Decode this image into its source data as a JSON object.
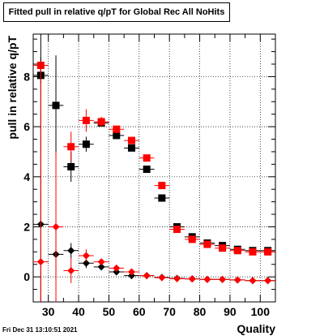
{
  "chart_data": {
    "type": "scatter",
    "title": "Fitted pull in relative q/pT for Global Rec All NoHits",
    "xlabel": "Quality",
    "ylabel": "pull in relative q/pT",
    "xlim": [
      25,
      105
    ],
    "ylim": [
      -1,
      9.7
    ],
    "x_ticks": [
      30,
      35,
      40,
      45,
      50,
      55,
      60,
      65,
      70,
      75,
      80,
      85,
      90,
      95,
      100
    ],
    "x_tick_labels": [
      "30",
      "40",
      "50",
      "60",
      "70",
      "80",
      "90",
      "100"
    ],
    "y_ticks": [
      0,
      2,
      4,
      6,
      8
    ],
    "y_tick_labels": [
      "0",
      "2",
      "4",
      "6",
      "8"
    ],
    "grid": true,
    "series": [
      {
        "color": "#000000",
        "marker": "square",
        "points": [
          {
            "x": 27.5,
            "y": 8.05,
            "err": 0.3
          },
          {
            "x": 32.5,
            "y": 6.85,
            "err": 2.0
          },
          {
            "x": 37.5,
            "y": 4.4,
            "err": 0.6
          },
          {
            "x": 42.5,
            "y": 5.3,
            "err": 0.3
          },
          {
            "x": 47.5,
            "y": 6.15,
            "err": 0.15
          },
          {
            "x": 52.5,
            "y": 5.65,
            "err": 0.1
          },
          {
            "x": 57.5,
            "y": 5.15,
            "err": 0.1
          },
          {
            "x": 62.5,
            "y": 4.3,
            "err": 0.08
          },
          {
            "x": 67.5,
            "y": 3.15,
            "err": 0.06
          },
          {
            "x": 72.5,
            "y": 2.0,
            "err": 0.05
          },
          {
            "x": 77.5,
            "y": 1.6,
            "err": 0.05
          },
          {
            "x": 82.5,
            "y": 1.35,
            "err": 0.04
          },
          {
            "x": 87.5,
            "y": 1.25,
            "err": 0.04
          },
          {
            "x": 92.5,
            "y": 1.1,
            "err": 0.04
          },
          {
            "x": 97.5,
            "y": 1.05,
            "err": 0.04
          },
          {
            "x": 102.5,
            "y": 1.05,
            "err": 0.04
          }
        ]
      },
      {
        "color": "#ff0000",
        "marker": "square",
        "points": [
          {
            "x": 27.5,
            "y": 8.45,
            "err": 0.3
          },
          {
            "x": 37.5,
            "y": 5.2,
            "err": 0.6
          },
          {
            "x": 42.5,
            "y": 6.25,
            "err": 0.45
          },
          {
            "x": 47.5,
            "y": 6.2,
            "err": 0.2
          },
          {
            "x": 52.5,
            "y": 5.9,
            "err": 0.1
          },
          {
            "x": 57.5,
            "y": 5.45,
            "err": 0.1
          },
          {
            "x": 62.5,
            "y": 4.75,
            "err": 0.08
          },
          {
            "x": 67.5,
            "y": 3.65,
            "err": 0.06
          },
          {
            "x": 72.5,
            "y": 1.9,
            "err": 0.05
          },
          {
            "x": 77.5,
            "y": 1.5,
            "err": 0.05
          },
          {
            "x": 82.5,
            "y": 1.3,
            "err": 0.04
          },
          {
            "x": 87.5,
            "y": 1.15,
            "err": 0.04
          },
          {
            "x": 92.5,
            "y": 1.05,
            "err": 0.04
          },
          {
            "x": 97.5,
            "y": 1.0,
            "err": 0.04
          },
          {
            "x": 102.5,
            "y": 1.0,
            "err": 0.04
          }
        ]
      },
      {
        "color": "#000000",
        "marker": "diamond",
        "points": [
          {
            "x": 27.5,
            "y": 2.1,
            "err": 8.0
          },
          {
            "x": 32.5,
            "y": 0.9,
            "err": 1.0
          },
          {
            "x": 37.5,
            "y": 1.05,
            "err": 0.3
          },
          {
            "x": 42.5,
            "y": 0.55,
            "err": 0.2
          },
          {
            "x": 47.5,
            "y": 0.4,
            "err": 0.1
          },
          {
            "x": 52.5,
            "y": 0.2,
            "err": 0.06
          },
          {
            "x": 57.5,
            "y": 0.05,
            "err": 0.04
          },
          {
            "x": 62.5,
            "y": 0.05,
            "err": 0.03
          },
          {
            "x": 67.5,
            "y": -0.02,
            "err": 0.03
          },
          {
            "x": 72.5,
            "y": -0.06,
            "err": 0.02
          },
          {
            "x": 77.5,
            "y": -0.08,
            "err": 0.02
          },
          {
            "x": 82.5,
            "y": -0.1,
            "err": 0.02
          },
          {
            "x": 87.5,
            "y": -0.1,
            "err": 0.02
          },
          {
            "x": 92.5,
            "y": -0.12,
            "err": 0.02
          },
          {
            "x": 97.5,
            "y": -0.15,
            "err": 0.02
          },
          {
            "x": 102.5,
            "y": -0.15,
            "err": 0.02
          }
        ]
      },
      {
        "color": "#ff0000",
        "marker": "diamond",
        "points": [
          {
            "x": 27.5,
            "y": 0.6,
            "err": 8.0
          },
          {
            "x": 32.5,
            "y": 2.0,
            "err": 3.0
          },
          {
            "x": 37.5,
            "y": 0.25,
            "err": 0.5
          },
          {
            "x": 42.5,
            "y": 0.85,
            "err": 0.25
          },
          {
            "x": 47.5,
            "y": 0.6,
            "err": 0.1
          },
          {
            "x": 52.5,
            "y": 0.35,
            "err": 0.06
          },
          {
            "x": 57.5,
            "y": 0.2,
            "err": 0.04
          },
          {
            "x": 62.5,
            "y": 0.05,
            "err": 0.03
          },
          {
            "x": 67.5,
            "y": -0.03,
            "err": 0.03
          },
          {
            "x": 72.5,
            "y": -0.07,
            "err": 0.02
          },
          {
            "x": 77.5,
            "y": -0.08,
            "err": 0.02
          },
          {
            "x": 82.5,
            "y": -0.1,
            "err": 0.02
          },
          {
            "x": 87.5,
            "y": -0.1,
            "err": 0.02
          },
          {
            "x": 92.5,
            "y": -0.12,
            "err": 0.02
          },
          {
            "x": 97.5,
            "y": -0.15,
            "err": 0.02
          },
          {
            "x": 102.5,
            "y": -0.15,
            "err": 0.02
          }
        ]
      }
    ]
  },
  "footer": {
    "timestamp": "Fri Dec 31 13:10:51 2021"
  }
}
